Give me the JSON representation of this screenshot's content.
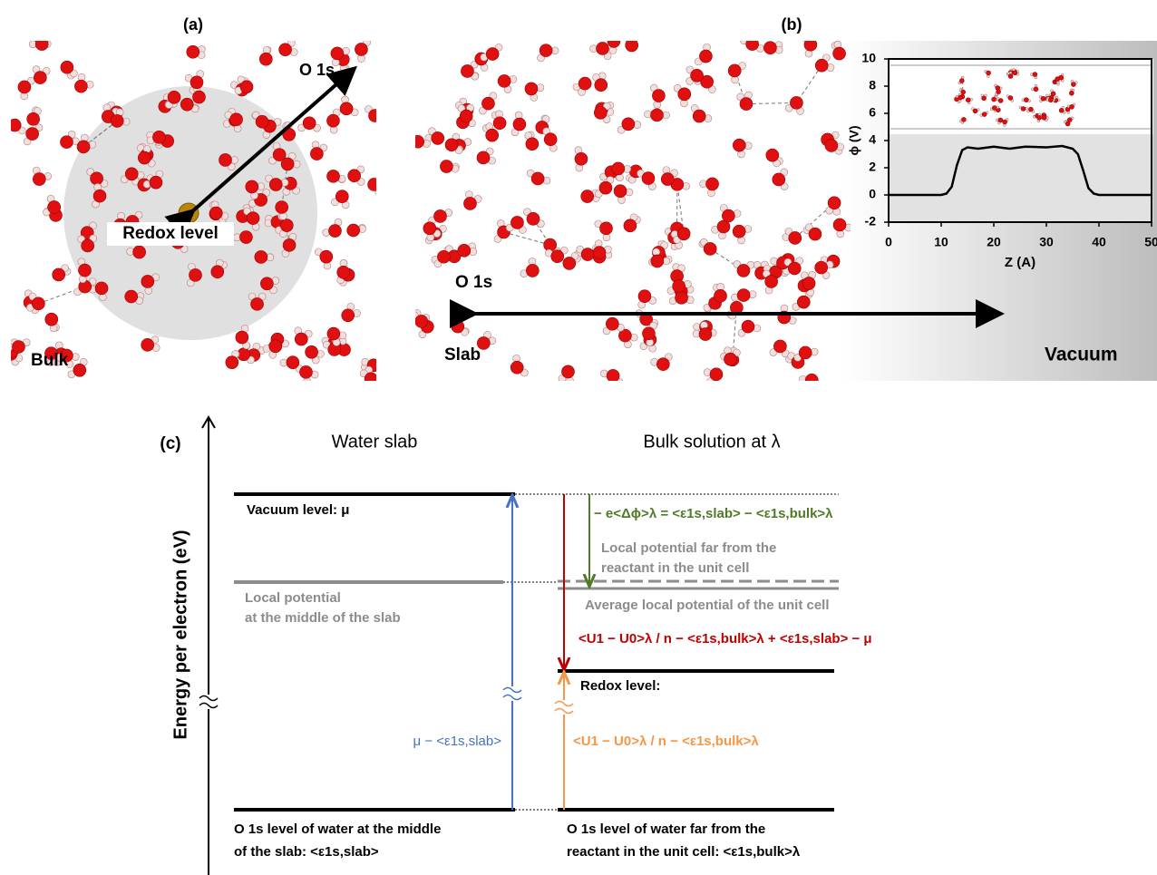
{
  "panels": {
    "a": {
      "label": "(a)",
      "o1s": "O 1s",
      "redox": "Redox level",
      "bulk": "Bulk"
    },
    "b": {
      "label": "(b)",
      "o1s": "O 1s",
      "slab": "Slab",
      "vacuum": "Vacuum"
    },
    "c": {
      "label": "(c)",
      "axis_label": "Energy per electron (eV)",
      "left_title": "Water slab",
      "right_title": "Bulk solution at λ",
      "vacuum_level": "Vacuum level: μ",
      "local_potential_slab": [
        "Local potential",
        "at the middle of the slab"
      ],
      "slab_gap": "μ − <ε1s,slab>",
      "dphi": "− e<Δϕ>λ = <ε1s,slab> − <ε1s,bulk>λ",
      "local_far": [
        "Local potential far from the",
        "reactant in the unit cell"
      ],
      "average": "Average local potential of the unit cell",
      "red_formula": "<U1 − U0>λ / n − <ε1s,bulk>λ + <ε1s,slab> − μ",
      "redox": "Redox level:",
      "orange_formula": "<U1 − U0>λ / n − <ε1s,bulk>λ",
      "o1s_slab": [
        "O 1s level of water at the middle",
        "of the slab: <ε1s,slab>"
      ],
      "o1s_bulk": [
        "O 1s level of water far from the",
        "reactant in the unit cell: <ε1s,bulk>λ"
      ]
    }
  },
  "chart_data": {
    "type": "line",
    "x_label": "Z (A)",
    "y_label": "ϕ (V)",
    "x": [
      0,
      10,
      11,
      12,
      13,
      14,
      15,
      17,
      20,
      23,
      26,
      30,
      33,
      35,
      36,
      37,
      38,
      39,
      40,
      45,
      50
    ],
    "series": [
      {
        "color": "#000000",
        "values": [
          0,
          0,
          0.1,
          0.6,
          2.2,
          3.3,
          3.5,
          3.4,
          3.55,
          3.4,
          3.55,
          3.5,
          3.6,
          3.4,
          3.0,
          1.8,
          0.5,
          0.1,
          0,
          0,
          0
        ]
      }
    ],
    "xlim": [
      0,
      50
    ],
    "ylim": [
      -2,
      10
    ],
    "xticks": [
      0,
      10,
      20,
      30,
      40,
      50
    ],
    "yticks": [
      -2,
      0,
      2,
      4,
      6,
      8,
      10
    ]
  }
}
